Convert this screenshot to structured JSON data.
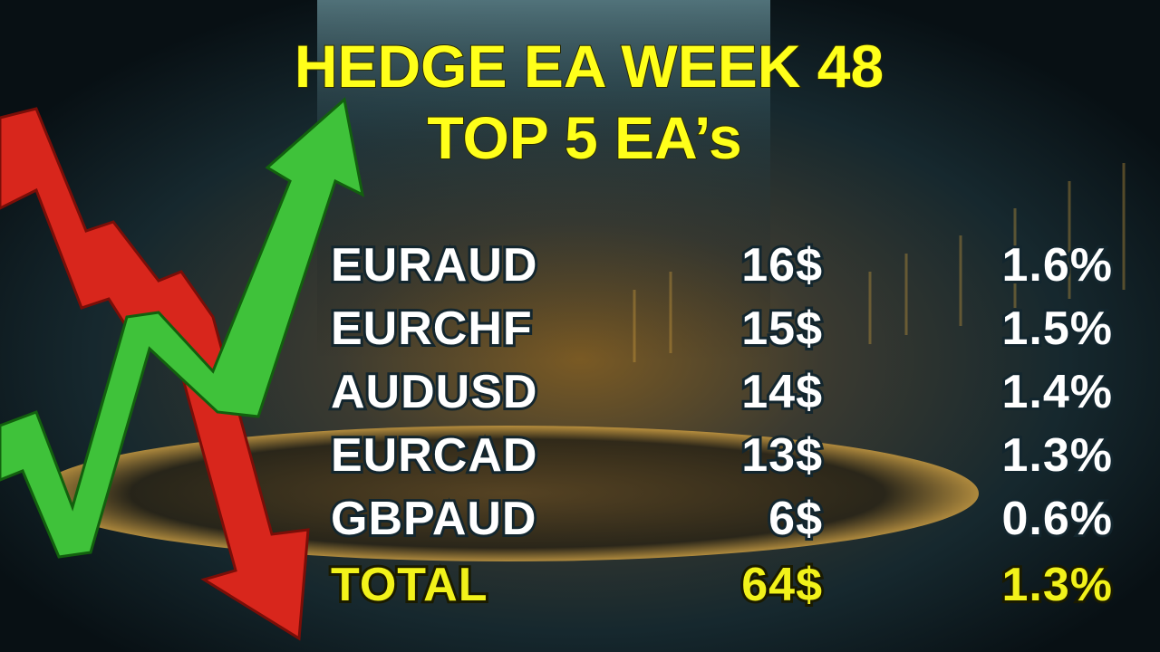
{
  "title": [
    "HEDGE EA WEEK 48",
    "TOP 5 EA’s"
  ],
  "table": {
    "rows": [
      [
        "EURAUD",
        "16$",
        "1.6%"
      ],
      [
        "EURCHF",
        "15$",
        "1.5%"
      ],
      [
        "AUDUSD",
        "14$",
        "1.4%"
      ],
      [
        "EURCAD",
        "13$",
        "1.3%"
      ],
      [
        "GBPAUD",
        "6$",
        "0.6%"
      ]
    ],
    "total": [
      "TOTAL",
      "64$",
      "1.3%"
    ]
  }
}
